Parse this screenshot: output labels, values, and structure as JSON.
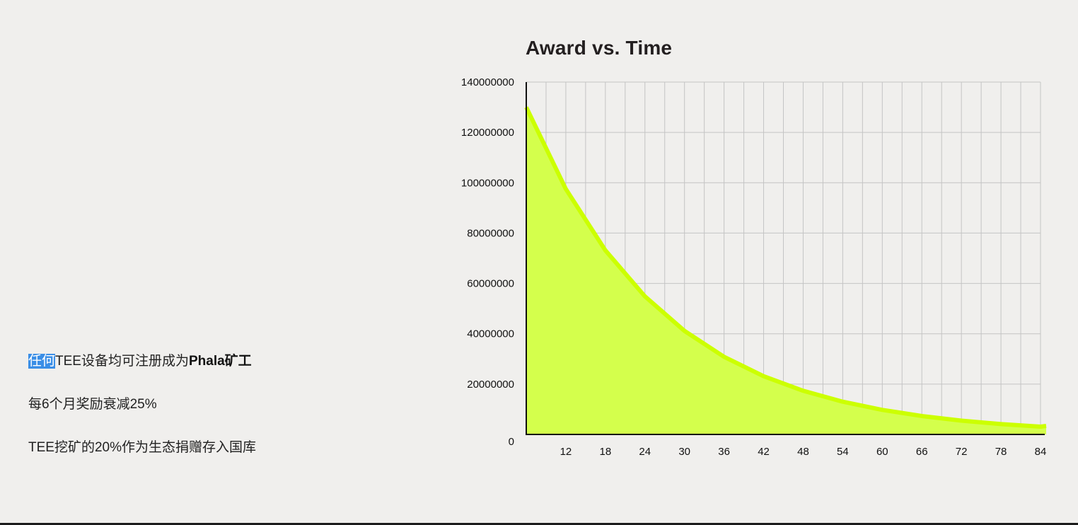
{
  "bullets": [
    {
      "highlight": "任何",
      "text": "TEE设备均可注册成为",
      "bold": "Phala矿工"
    },
    {
      "highlight": "",
      "text": "每6个月奖励衰减25%",
      "bold": ""
    },
    {
      "highlight": "",
      "text": "TEE挖矿的20%作为生态捐赠存入国库",
      "bold": ""
    }
  ],
  "chart_data": {
    "type": "area",
    "title": "Award vs. Time",
    "xlabel": "",
    "ylabel": "",
    "xlim": [
      6,
      84
    ],
    "ylim": [
      0,
      140000000
    ],
    "xticks": [
      12,
      18,
      24,
      30,
      36,
      42,
      48,
      54,
      60,
      66,
      72,
      78,
      84
    ],
    "yticks": [
      0,
      20000000,
      40000000,
      60000000,
      80000000,
      100000000,
      120000000,
      140000000
    ],
    "grid": true,
    "colors": {
      "fill": "#d4ff4c",
      "line": "#ccff00",
      "grid": "#c4c4c4",
      "axis": "#111111"
    },
    "series": [
      {
        "x": [
          6,
          12,
          18,
          24,
          30,
          36,
          42,
          48,
          54,
          60,
          66,
          72,
          78,
          84
        ],
        "values": [
          130000000,
          97500000,
          73125000,
          54843750,
          41132813,
          30849609,
          23137207,
          17352905,
          13014679,
          9761009,
          7320757,
          5490568,
          4117926,
          3088444
        ]
      }
    ]
  }
}
